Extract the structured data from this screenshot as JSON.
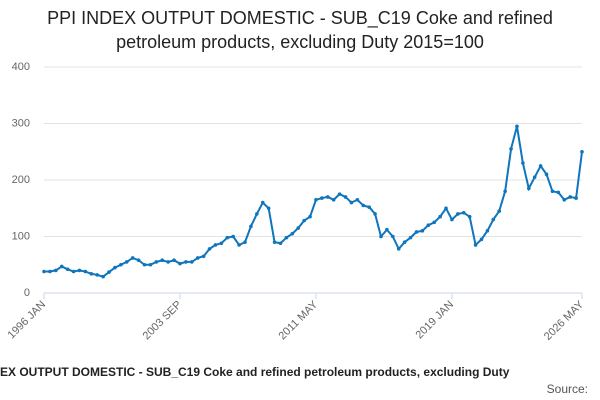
{
  "chart_data": {
    "type": "line",
    "title": "PPI INDEX OUTPUT DOMESTIC - SUB_C19 Coke and refined petroleum products, excluding Duty 2015=100",
    "x_label": "EX OUTPUT DOMESTIC - SUB_C19 Coke and refined petroleum products, excluding Duty",
    "source": "Source:",
    "categories": [
      "1996 JAN",
      null,
      null,
      null,
      null,
      null,
      null,
      null,
      null,
      null,
      null,
      null,
      null,
      null,
      null,
      null,
      null,
      null,
      null,
      null,
      null,
      null,
      null,
      "2003 SEP",
      null,
      null,
      null,
      null,
      null,
      null,
      null,
      null,
      null,
      null,
      null,
      null,
      null,
      null,
      null,
      null,
      null,
      null,
      null,
      null,
      null,
      null,
      "2011 MAY",
      null,
      null,
      null,
      null,
      null,
      null,
      null,
      null,
      null,
      null,
      null,
      null,
      null,
      null,
      null,
      null,
      null,
      null,
      null,
      null,
      null,
      null,
      "2019 JAN",
      null,
      null,
      null,
      null,
      null,
      null,
      null,
      null,
      null,
      null,
      null,
      null,
      null,
      null,
      null,
      null,
      null,
      null,
      null,
      null,
      null,
      "2026 MAY"
    ],
    "series": [
      {
        "name": "PPI",
        "color": "#0f75bc",
        "values": [
          38,
          38,
          40,
          47,
          42,
          38,
          40,
          38,
          34,
          32,
          29,
          37,
          45,
          50,
          55,
          62,
          58,
          50,
          50,
          55,
          58,
          55,
          58,
          52,
          55,
          55,
          62,
          65,
          78,
          85,
          88,
          98,
          100,
          85,
          90,
          118,
          140,
          160,
          150,
          90,
          88,
          98,
          105,
          115,
          128,
          135,
          165,
          168,
          170,
          165,
          175,
          170,
          160,
          165,
          155,
          152,
          140,
          100,
          112,
          100,
          78,
          90,
          98,
          108,
          110,
          120,
          125,
          135,
          150,
          130,
          140,
          142,
          135,
          85,
          95,
          110,
          130,
          145,
          180,
          255,
          295,
          230,
          185,
          205,
          225,
          210,
          180,
          178,
          165,
          170,
          168,
          250
        ]
      }
    ],
    "ylim": [
      0,
      400
    ],
    "yticks": [
      0,
      100,
      200,
      300,
      400
    ],
    "grid": true
  }
}
